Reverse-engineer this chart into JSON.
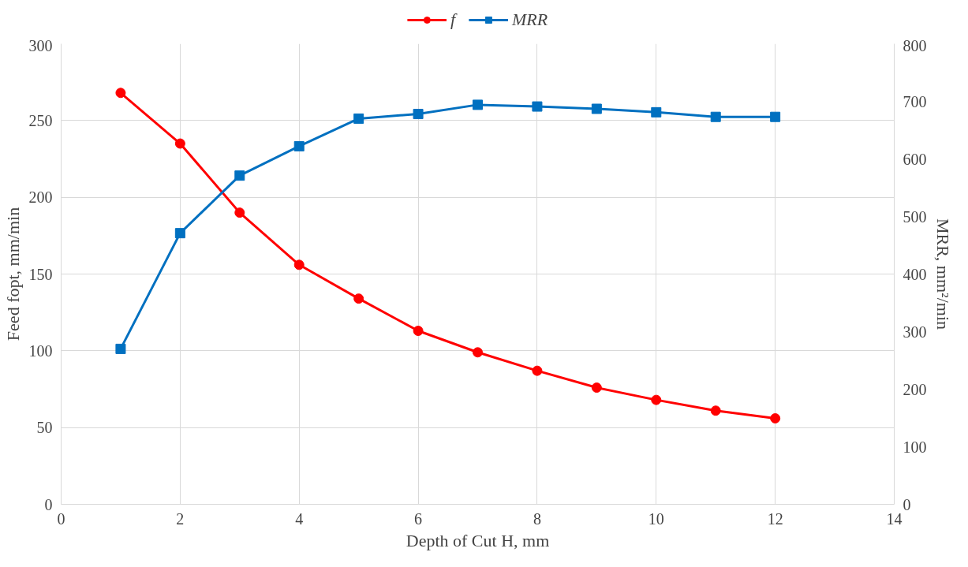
{
  "chart_data": {
    "type": "line",
    "xlabel": "Depth of Cut H, mm",
    "ylabel": "Feed fopt, mm/min",
    "y2label": "MRR, mm²/min",
    "x": [
      1,
      2,
      3,
      4,
      5,
      6,
      7,
      8,
      9,
      10,
      11,
      12
    ],
    "series": [
      {
        "name": "f",
        "color": "#ff0000",
        "marker": "circle",
        "values": [
          268,
          235,
          190,
          156,
          134,
          113,
          99,
          87,
          76,
          68,
          61,
          56
        ]
      },
      {
        "name": "MRR",
        "color": "#0070c0",
        "marker": "square",
        "axis": "y2",
        "values": [
          270,
          471,
          571,
          622,
          670,
          678,
          694,
          691,
          687,
          681,
          673,
          673
        ]
      }
    ],
    "xlim": [
      0,
      14
    ],
    "xticks": [
      0,
      2,
      4,
      6,
      8,
      10,
      12,
      14
    ],
    "ylim": [
      0,
      300
    ],
    "yticks": [
      0,
      50,
      100,
      150,
      200,
      250,
      300
    ],
    "y2lim": [
      0,
      800
    ],
    "y2ticks": [
      0,
      100,
      200,
      300,
      400,
      500,
      600,
      700,
      800
    ],
    "grid": true,
    "legend": "top",
    "line_style": "solid"
  }
}
